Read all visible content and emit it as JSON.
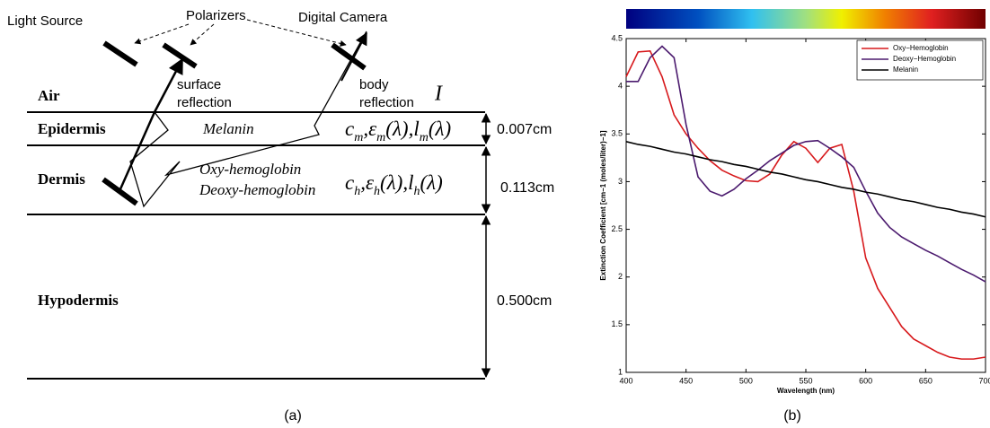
{
  "diagram": {
    "labels": {
      "light_source": "Light Source",
      "polarizers": "Polarizers",
      "digital_camera": "Digital Camera",
      "surface_reflection": [
        "surface",
        "reflection"
      ],
      "body_reflection": [
        "body",
        "reflection"
      ],
      "intensity": "I"
    },
    "layers": [
      {
        "name": "Air"
      },
      {
        "name": "Epidermis",
        "content": [
          "Melanin"
        ],
        "formula": [
          {
            "text": "c",
            "sub": false
          },
          {
            "text": "m",
            "sub": true
          },
          {
            "text": ",ε",
            "sub": false
          },
          {
            "text": "m",
            "sub": true
          },
          {
            "text": "(λ),l",
            "sub": false
          },
          {
            "text": "m",
            "sub": true
          },
          {
            "text": "(λ)",
            "sub": false
          }
        ],
        "thickness": "0.007cm"
      },
      {
        "name": "Dermis",
        "content": [
          "Oxy-hemoglobin",
          "Deoxy-hemoglobin"
        ],
        "formula": [
          {
            "text": "c",
            "sub": false
          },
          {
            "text": "h",
            "sub": true
          },
          {
            "text": ",ε",
            "sub": false
          },
          {
            "text": "h",
            "sub": true
          },
          {
            "text": "(λ),l",
            "sub": false
          },
          {
            "text": "h",
            "sub": true
          },
          {
            "text": "(λ)",
            "sub": false
          }
        ],
        "thickness": "0.113cm"
      },
      {
        "name": "Hypodermis",
        "thickness": "0.500cm"
      }
    ]
  },
  "captions": [
    "(a)",
    "(b)"
  ],
  "chart_data": {
    "type": "line",
    "x_label": "Wavelength (nm)",
    "y_label": "Extinction Coefficient [cm−1 (moles/liter)−1]",
    "x": [
      400,
      410,
      420,
      430,
      440,
      450,
      460,
      470,
      480,
      490,
      500,
      510,
      520,
      530,
      540,
      550,
      560,
      570,
      580,
      590,
      600,
      610,
      620,
      630,
      640,
      650,
      660,
      670,
      680,
      690,
      700
    ],
    "series": [
      {
        "name": "Oxy−Hemoglobin",
        "color": "#d7191c",
        "values": [
          4.1,
          4.36,
          4.37,
          4.1,
          3.7,
          3.5,
          3.35,
          3.22,
          3.12,
          3.06,
          3.01,
          3.0,
          3.08,
          3.28,
          3.42,
          3.35,
          3.2,
          3.35,
          3.39,
          2.9,
          2.2,
          1.88,
          1.68,
          1.48,
          1.35,
          1.28,
          1.21,
          1.16,
          1.14,
          1.14,
          1.16
        ]
      },
      {
        "name": "Deoxy−Hemoglobin",
        "color": "#4b1a6e",
        "values": [
          4.05,
          4.05,
          4.3,
          4.42,
          4.3,
          3.6,
          3.05,
          2.9,
          2.85,
          2.92,
          3.03,
          3.12,
          3.22,
          3.3,
          3.38,
          3.42,
          3.43,
          3.35,
          3.26,
          3.15,
          2.9,
          2.67,
          2.52,
          2.42,
          2.35,
          2.28,
          2.22,
          2.15,
          2.08,
          2.02,
          1.95
        ]
      },
      {
        "name": "Melanin",
        "color": "#000000",
        "values": [
          3.42,
          3.39,
          3.37,
          3.34,
          3.31,
          3.29,
          3.26,
          3.23,
          3.21,
          3.18,
          3.16,
          3.13,
          3.1,
          3.08,
          3.05,
          3.02,
          3.0,
          2.97,
          2.94,
          2.92,
          2.89,
          2.87,
          2.84,
          2.81,
          2.79,
          2.76,
          2.73,
          2.71,
          2.68,
          2.66,
          2.63
        ]
      }
    ],
    "xlim": [
      400,
      700
    ],
    "ylim": [
      1,
      4.5
    ],
    "xticks": [
      400,
      450,
      500,
      550,
      600,
      650,
      700
    ],
    "yticks": [
      1,
      1.5,
      2,
      2.5,
      3,
      3.5,
      4,
      4.5
    ],
    "legend": "upper right",
    "grid": false
  }
}
